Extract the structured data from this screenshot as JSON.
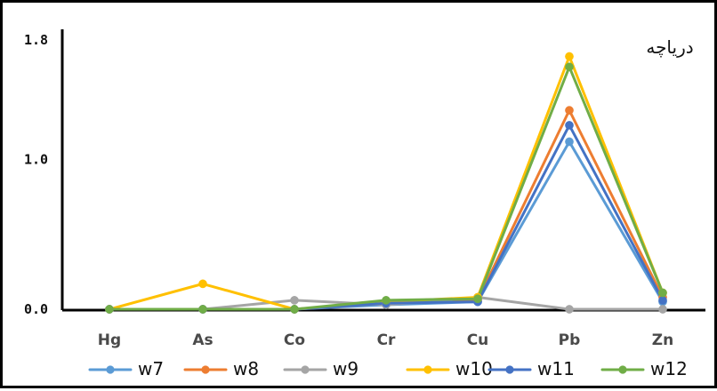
{
  "chart_data": {
    "type": "line",
    "title": "دریاچه",
    "xlabel": "",
    "ylabel": "",
    "categories": [
      "Hg",
      "As",
      "Co",
      "Cr",
      "Cu",
      "Pb",
      "Zn"
    ],
    "yticks": [
      "0.0",
      "1.0",
      "1.8"
    ],
    "ylim": [
      0,
      1.8
    ],
    "legend_position": "bottom",
    "grid": false,
    "series": [
      {
        "name": "w7",
        "color": "#5B9BD5",
        "values": [
          0.0,
          0.0,
          0.0,
          0.03,
          0.05,
          1.12,
          0.05
        ]
      },
      {
        "name": "w8",
        "color": "#ED7D31",
        "values": [
          0.0,
          0.0,
          0.0,
          0.04,
          0.06,
          1.33,
          0.08
        ]
      },
      {
        "name": "w9",
        "color": "#A5A5A5",
        "values": [
          0.0,
          0.0,
          0.06,
          0.03,
          0.08,
          0.0,
          0.0
        ]
      },
      {
        "name": "w10",
        "color": "#FFC000",
        "values": [
          0.0,
          0.17,
          0.0,
          0.05,
          0.08,
          1.69,
          0.11
        ]
      },
      {
        "name": "w11",
        "color": "#4472C4",
        "values": [
          0.0,
          0.0,
          0.0,
          0.04,
          0.05,
          1.23,
          0.06
        ]
      },
      {
        "name": "w12",
        "color": "#70AD47",
        "values": [
          0.0,
          0.0,
          0.0,
          0.06,
          0.07,
          1.62,
          0.11
        ]
      }
    ]
  }
}
